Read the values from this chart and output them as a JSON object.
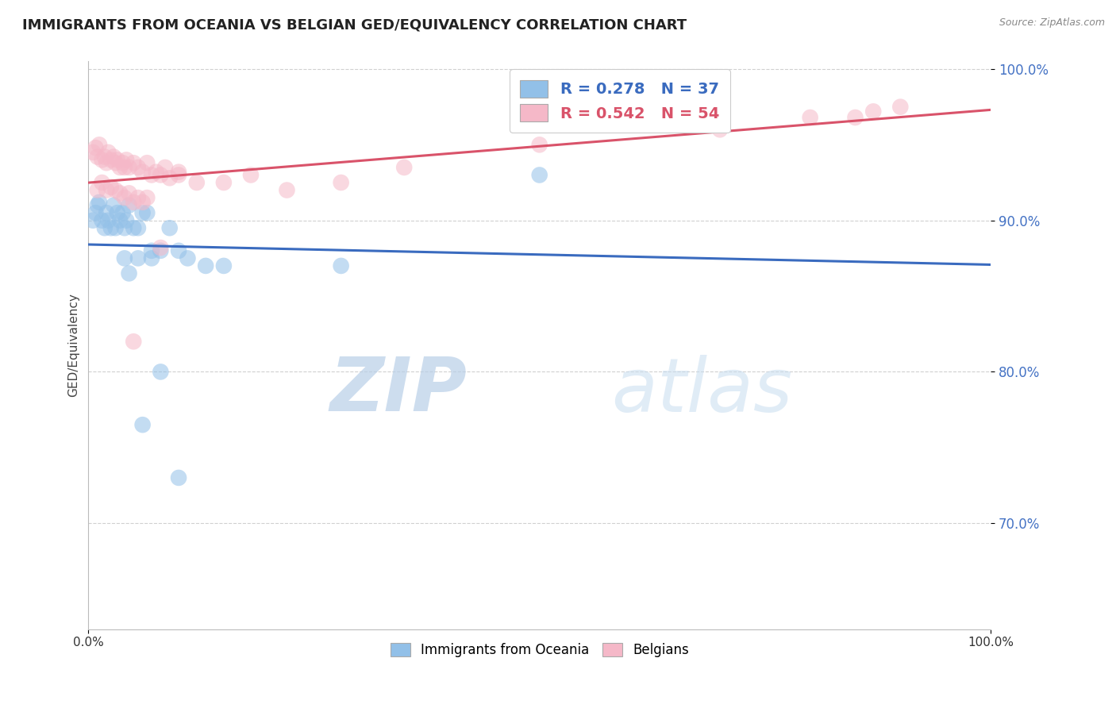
{
  "title": "IMMIGRANTS FROM OCEANIA VS BELGIAN GED/EQUIVALENCY CORRELATION CHART",
  "source": "Source: ZipAtlas.com",
  "ylabel": "GED/Equivalency",
  "xlim": [
    0.0,
    1.0
  ],
  "ylim": [
    0.63,
    1.005
  ],
  "yticks": [
    0.7,
    0.8,
    0.9,
    1.0
  ],
  "ytick_labels": [
    "70.0%",
    "80.0%",
    "90.0%",
    "100.0%"
  ],
  "xtick_vals": [
    0.0,
    1.0
  ],
  "xtick_labels": [
    "0.0%",
    "100.0%"
  ],
  "blue_R": 0.278,
  "blue_N": 37,
  "pink_R": 0.542,
  "pink_N": 54,
  "blue_color": "#92c0e8",
  "pink_color": "#f5b8c8",
  "blue_line_color": "#3a6bbf",
  "pink_line_color": "#d9536a",
  "legend_blue_label": "Immigrants from Oceania",
  "legend_pink_label": "Belgians",
  "watermark_zip": "ZIP",
  "watermark_atlas": "atlas",
  "background_color": "#ffffff",
  "grid_color": "#d0d0d0",
  "blue_x": [
    0.005,
    0.008,
    0.01,
    0.012,
    0.015,
    0.018,
    0.02,
    0.022,
    0.025,
    0.028,
    0.03,
    0.032,
    0.035,
    0.038,
    0.04,
    0.042,
    0.045,
    0.05,
    0.055,
    0.06,
    0.065,
    0.07,
    0.08,
    0.09,
    0.1,
    0.11,
    0.13,
    0.15,
    0.04,
    0.045,
    0.055,
    0.07,
    0.5,
    0.08,
    0.06,
    0.1,
    0.28
  ],
  "blue_y": [
    0.9,
    0.905,
    0.91,
    0.912,
    0.9,
    0.895,
    0.905,
    0.9,
    0.895,
    0.91,
    0.895,
    0.905,
    0.9,
    0.905,
    0.895,
    0.9,
    0.91,
    0.895,
    0.895,
    0.905,
    0.905,
    0.875,
    0.88,
    0.895,
    0.88,
    0.875,
    0.87,
    0.87,
    0.875,
    0.865,
    0.875,
    0.88,
    0.93,
    0.8,
    0.765,
    0.73,
    0.87
  ],
  "pink_x": [
    0.005,
    0.008,
    0.01,
    0.012,
    0.015,
    0.018,
    0.02,
    0.022,
    0.025,
    0.028,
    0.03,
    0.032,
    0.035,
    0.038,
    0.04,
    0.042,
    0.045,
    0.05,
    0.055,
    0.06,
    0.065,
    0.07,
    0.075,
    0.08,
    0.085,
    0.09,
    0.1,
    0.01,
    0.015,
    0.02,
    0.025,
    0.03,
    0.035,
    0.04,
    0.045,
    0.05,
    0.055,
    0.06,
    0.065,
    0.1,
    0.12,
    0.15,
    0.18,
    0.22,
    0.28,
    0.35,
    0.5,
    0.7,
    0.8,
    0.85,
    0.87,
    0.9,
    0.05,
    0.08
  ],
  "pink_y": [
    0.945,
    0.948,
    0.942,
    0.95,
    0.94,
    0.942,
    0.938,
    0.945,
    0.94,
    0.942,
    0.938,
    0.94,
    0.935,
    0.938,
    0.935,
    0.94,
    0.935,
    0.938,
    0.935,
    0.932,
    0.938,
    0.93,
    0.932,
    0.93,
    0.935,
    0.928,
    0.932,
    0.92,
    0.925,
    0.92,
    0.922,
    0.92,
    0.918,
    0.915,
    0.918,
    0.912,
    0.915,
    0.912,
    0.915,
    0.93,
    0.925,
    0.925,
    0.93,
    0.92,
    0.925,
    0.935,
    0.95,
    0.96,
    0.968,
    0.968,
    0.972,
    0.975,
    0.82,
    0.882
  ]
}
